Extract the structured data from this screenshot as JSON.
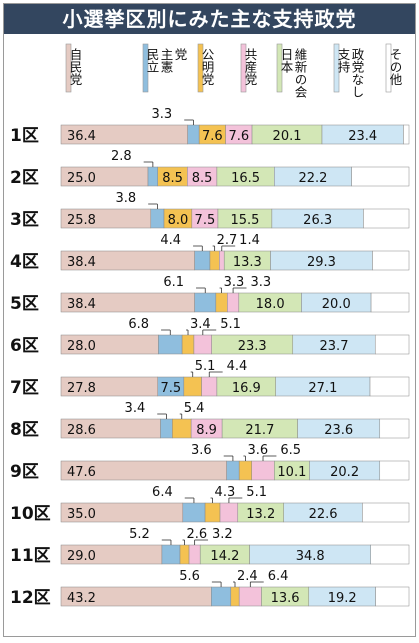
{
  "chart_data": {
    "type": "bar",
    "title": "小選挙区別にみた主な支持政党",
    "categories": [
      "1区",
      "2区",
      "3区",
      "4区",
      "5区",
      "6区",
      "7区",
      "8区",
      "9区",
      "10区",
      "11区",
      "12区"
    ],
    "series": [
      {
        "name": "自民党",
        "color": "#e5cbc3",
        "values": [
          36.4,
          25.0,
          25.8,
          38.4,
          38.4,
          28.0,
          27.8,
          28.6,
          47.6,
          35.0,
          29.0,
          43.2
        ]
      },
      {
        "name": "立憲民主党",
        "color": "#8fbede",
        "values": [
          3.3,
          2.8,
          3.8,
          4.4,
          6.1,
          6.8,
          7.5,
          3.4,
          3.6,
          6.4,
          5.2,
          5.6
        ]
      },
      {
        "name": "公明党",
        "color": "#f4c252",
        "values": [
          7.6,
          8.5,
          8.0,
          2.7,
          3.3,
          3.4,
          5.1,
          5.4,
          3.6,
          4.3,
          2.6,
          2.4
        ]
      },
      {
        "name": "共産党",
        "color": "#f3c2da",
        "values": [
          7.6,
          8.5,
          7.5,
          1.4,
          3.3,
          5.1,
          4.4,
          8.9,
          6.5,
          5.1,
          3.2,
          6.4
        ]
      },
      {
        "name": "日本維新の会",
        "color": "#d3e7b6",
        "values": [
          20.1,
          16.5,
          15.5,
          13.3,
          18.0,
          23.3,
          16.9,
          21.7,
          10.1,
          13.2,
          14.2,
          13.6
        ]
      },
      {
        "name": "支持政党なし",
        "color": "#cee6f4",
        "values": [
          23.4,
          22.2,
          26.3,
          29.3,
          20.0,
          23.7,
          27.1,
          23.6,
          20.2,
          22.6,
          34.8,
          19.2
        ]
      },
      {
        "name": "その他",
        "color": "#ffffff",
        "values": [
          1.6,
          16.5,
          13.1,
          10.5,
          10.9,
          9.7,
          11.2,
          8.4,
          8.4,
          13.4,
          11.0,
          9.6
        ]
      }
    ],
    "legend": [
      {
        "lines": [
          "自民党"
        ]
      },
      {
        "lines": [
          "民立",
          "主憲",
          "党"
        ]
      },
      {
        "lines": [
          "公明党"
        ]
      },
      {
        "lines": [
          "共産党"
        ]
      },
      {
        "lines": [
          "日本",
          "維新の会"
        ]
      },
      {
        "lines": [
          "支持",
          "政党なし"
        ]
      },
      {
        "lines": [
          "その他"
        ]
      }
    ],
    "labels": [
      {
        "series": 0,
        "inside": true
      },
      {
        "series": 1,
        "inside": false
      },
      {
        "series": 2,
        "inside": "mixed"
      },
      {
        "series": 3,
        "inside": "mixed"
      },
      {
        "series": 4,
        "inside": true
      },
      {
        "series": 5,
        "inside": true
      }
    ],
    "xlim": [
      0,
      100
    ],
    "legend_position": "top",
    "stacked": true,
    "unit": "%"
  }
}
